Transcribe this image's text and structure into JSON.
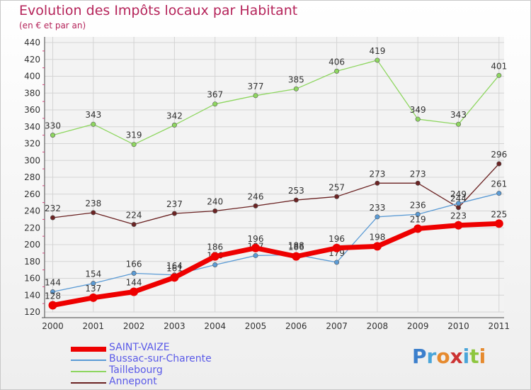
{
  "chart_data": {
    "type": "line",
    "title": "Evolution des Impôts locaux par Habitant",
    "subtitle": "(en € et par an)",
    "x": [
      "2000",
      "2001",
      "2002",
      "2003",
      "2004",
      "2005",
      "2006",
      "2007",
      "2008",
      "2009",
      "2010",
      "2011"
    ],
    "ylim": [
      120,
      440
    ],
    "yticks": [
      120,
      140,
      160,
      180,
      200,
      220,
      240,
      260,
      280,
      300,
      320,
      340,
      360,
      380,
      400,
      420,
      440
    ],
    "grid": true,
    "legend_position": "bottom-left",
    "series": [
      {
        "name": "SAINT-VAIZE",
        "color": "#ee0000",
        "values": [
          128,
          137,
          144,
          161,
          186,
          196,
          186,
          196,
          198,
          219,
          223,
          225
        ]
      },
      {
        "name": "Bussac-sur-Charente",
        "color": "#5b9bd5",
        "values": [
          144,
          154,
          166,
          164,
          176,
          187,
          188,
          179,
          233,
          236,
          249,
          261
        ]
      },
      {
        "name": "Taillebourg",
        "color": "#8ed660",
        "values": [
          330,
          343,
          319,
          342,
          367,
          377,
          385,
          406,
          419,
          349,
          343,
          401
        ]
      },
      {
        "name": "Annepont",
        "color": "#6b2323",
        "values": [
          232,
          238,
          224,
          237,
          240,
          246,
          253,
          257,
          273,
          273,
          244,
          296
        ]
      }
    ]
  },
  "logo": {
    "text": "Proxiti",
    "colors": [
      "#3b7fcc",
      "#4aa5d9",
      "#e68a2e",
      "#cc3333",
      "#4aa5d9",
      "#8ec63f",
      "#e68a2e"
    ]
  }
}
